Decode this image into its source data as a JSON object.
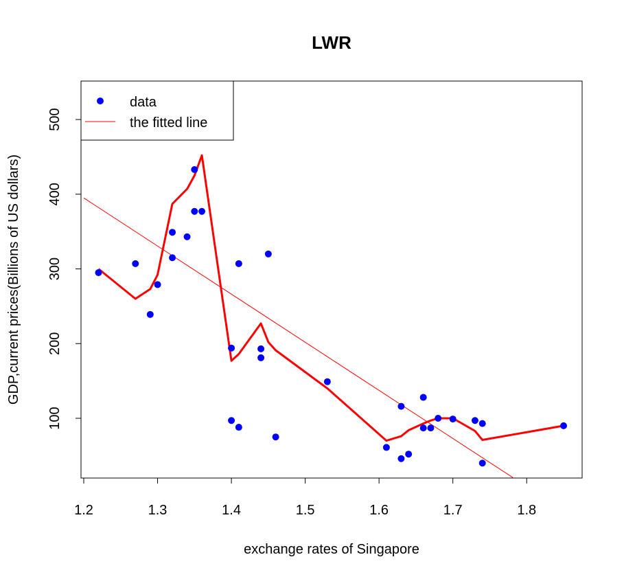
{
  "chart_data": {
    "type": "scatter",
    "title": "LWR",
    "xlabel": "exchange rates of Singapore",
    "ylabel": "GDP,current prices(Billions of US dollars)",
    "xlim": [
      1.2,
      1.85
    ],
    "ylim": [
      20,
      550
    ],
    "x_ticks": [
      "1.2",
      "1.3",
      "1.4",
      "1.5",
      "1.6",
      "1.7",
      "1.8"
    ],
    "y_ticks": [
      "100",
      "200",
      "300",
      "400",
      "500"
    ],
    "legend": {
      "position": "top-left",
      "entries": [
        {
          "label": "data",
          "color": "#0000ff",
          "symbol": "point"
        },
        {
          "label": "the fitted line",
          "color": "#ff0000",
          "symbol": "line"
        }
      ]
    },
    "series": [
      {
        "name": "data",
        "kind": "points",
        "color": "#0000ff",
        "points": [
          [
            1.22,
            295
          ],
          [
            1.27,
            307
          ],
          [
            1.29,
            239
          ],
          [
            1.3,
            279
          ],
          [
            1.32,
            349
          ],
          [
            1.32,
            315
          ],
          [
            1.34,
            343
          ],
          [
            1.35,
            433
          ],
          [
            1.35,
            377
          ],
          [
            1.36,
            377
          ],
          [
            1.4,
            194
          ],
          [
            1.41,
            307
          ],
          [
            1.4,
            97
          ],
          [
            1.41,
            88
          ],
          [
            1.44,
            193
          ],
          [
            1.44,
            181
          ],
          [
            1.45,
            320
          ],
          [
            1.46,
            75
          ],
          [
            1.53,
            149
          ],
          [
            1.61,
            61
          ],
          [
            1.63,
            116
          ],
          [
            1.63,
            46
          ],
          [
            1.64,
            52
          ],
          [
            1.66,
            128
          ],
          [
            1.66,
            87
          ],
          [
            1.67,
            87
          ],
          [
            1.68,
            100
          ],
          [
            1.7,
            99
          ],
          [
            1.73,
            97
          ],
          [
            1.74,
            93
          ],
          [
            1.74,
            40
          ],
          [
            1.85,
            90
          ]
        ]
      },
      {
        "name": "the fitted line",
        "kind": "abline",
        "color": "#ff0000",
        "points": [
          [
            1.2,
            395
          ],
          [
            1.79,
            15
          ]
        ]
      },
      {
        "name": "",
        "kind": "lwr",
        "color": "#ff0000",
        "points": [
          [
            1.22,
            300
          ],
          [
            1.27,
            260
          ],
          [
            1.29,
            273
          ],
          [
            1.3,
            292
          ],
          [
            1.32,
            387
          ],
          [
            1.34,
            407
          ],
          [
            1.35,
            425
          ],
          [
            1.36,
            452
          ],
          [
            1.4,
            177
          ],
          [
            1.41,
            186
          ],
          [
            1.44,
            227
          ],
          [
            1.45,
            202
          ],
          [
            1.46,
            191
          ],
          [
            1.53,
            140
          ],
          [
            1.61,
            70
          ],
          [
            1.63,
            76
          ],
          [
            1.64,
            84
          ],
          [
            1.66,
            93
          ],
          [
            1.67,
            97
          ],
          [
            1.68,
            100
          ],
          [
            1.7,
            100
          ],
          [
            1.73,
            83
          ],
          [
            1.74,
            71
          ],
          [
            1.85,
            90
          ]
        ]
      }
    ]
  }
}
